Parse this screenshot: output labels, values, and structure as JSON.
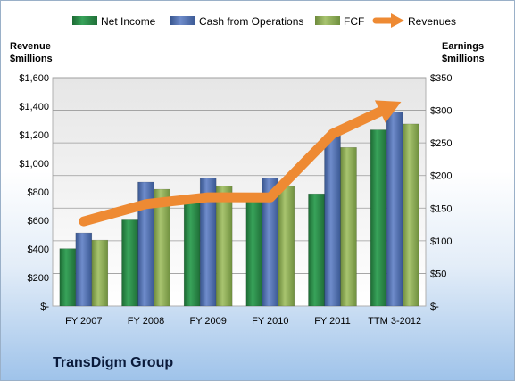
{
  "chart_data": {
    "type": "bar",
    "categories": [
      "FY 2007",
      "FY 2008",
      "FY 2009",
      "FY 2010",
      "FY 2011",
      "TTM 3-2012"
    ],
    "series": [
      {
        "name": "Net Income",
        "axis": "right",
        "color": "#2e8b4a",
        "values": [
          88,
          132,
          162,
          163,
          172,
          270
        ]
      },
      {
        "name": "Cash from Operations",
        "axis": "right",
        "color": "#4f6eae",
        "values": [
          112,
          190,
          196,
          196,
          262,
          297
        ]
      },
      {
        "name": "FCF",
        "axis": "right",
        "color": "#8fad55",
        "values": [
          101,
          179,
          184,
          184,
          243,
          279
        ]
      },
      {
        "name": "Revenues",
        "axis": "left",
        "type": "line",
        "color": "#ee8a33",
        "values": [
          593,
          714,
          762,
          761,
          1206,
          1410
        ]
      }
    ],
    "left_axis": {
      "title_line1": "Revenue",
      "title_line2": "$millions",
      "ylim": [
        0,
        1600
      ],
      "tick_values": [
        0,
        200,
        400,
        600,
        800,
        1000,
        1200,
        1400,
        1600
      ],
      "tick_labels": [
        "$-",
        "$200",
        "$400",
        "$600",
        "$800",
        "$1,000",
        "$1,200",
        "$1,400",
        "$1,600"
      ]
    },
    "right_axis": {
      "title_line1": "Earnings",
      "title_line2": "$millions",
      "ylim": [
        0,
        350
      ],
      "tick_values": [
        0,
        50,
        100,
        150,
        200,
        250,
        300,
        350
      ],
      "tick_labels": [
        "$-",
        "$50",
        "$100",
        "$150",
        "$200",
        "$250",
        "$300",
        "$350"
      ]
    },
    "legend_position": "top",
    "company": "TransDigm Group"
  }
}
